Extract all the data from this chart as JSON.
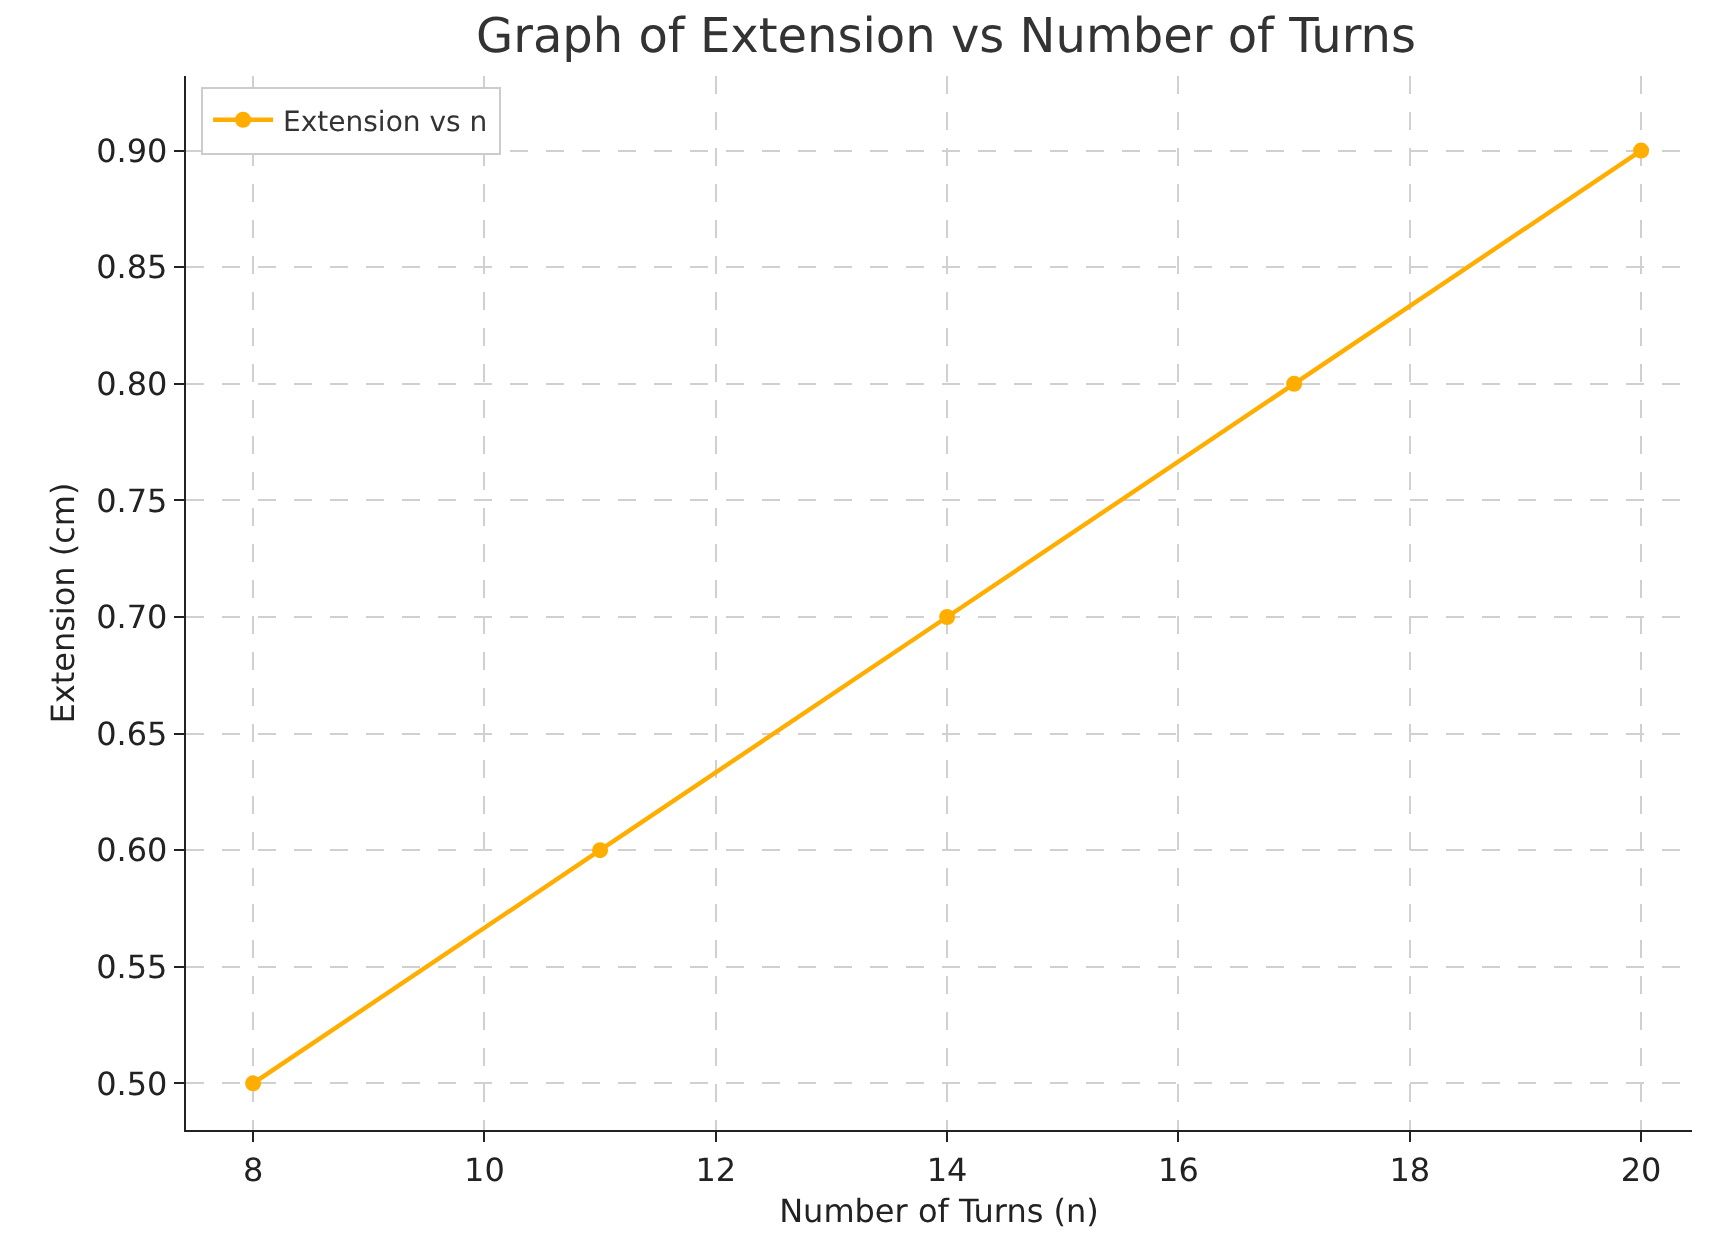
{
  "chart_data": {
    "type": "line",
    "title": "Graph of Extension vs Number of Turns",
    "xlabel": "Number of Turns (n)",
    "ylabel": "Extension (cm)",
    "x": [
      8,
      11,
      14,
      17,
      20
    ],
    "series": [
      {
        "name": "Extension vs n",
        "color": "#ffae00",
        "values": [
          0.5,
          0.6,
          0.7,
          0.8,
          0.9
        ]
      }
    ],
    "xlim": [
      7.42,
      20.44
    ],
    "xticks": [
      8,
      10,
      12,
      14,
      16,
      18,
      20
    ],
    "ylim": [
      0.48,
      0.932
    ],
    "yticks": [
      {
        "value": 0.5,
        "label": "0.50"
      },
      {
        "value": 0.55,
        "label": "0.55"
      },
      {
        "value": 0.6,
        "label": "0.60"
      },
      {
        "value": 0.65,
        "label": "0.65"
      },
      {
        "value": 0.7,
        "label": "0.70"
      },
      {
        "value": 0.75,
        "label": "0.75"
      },
      {
        "value": 0.8,
        "label": "0.80"
      },
      {
        "value": 0.85,
        "label": "0.85"
      },
      {
        "value": 0.9,
        "label": "0.90"
      }
    ],
    "grid": true,
    "legend": "top left",
    "marker": "circle",
    "line_style": "solid"
  }
}
